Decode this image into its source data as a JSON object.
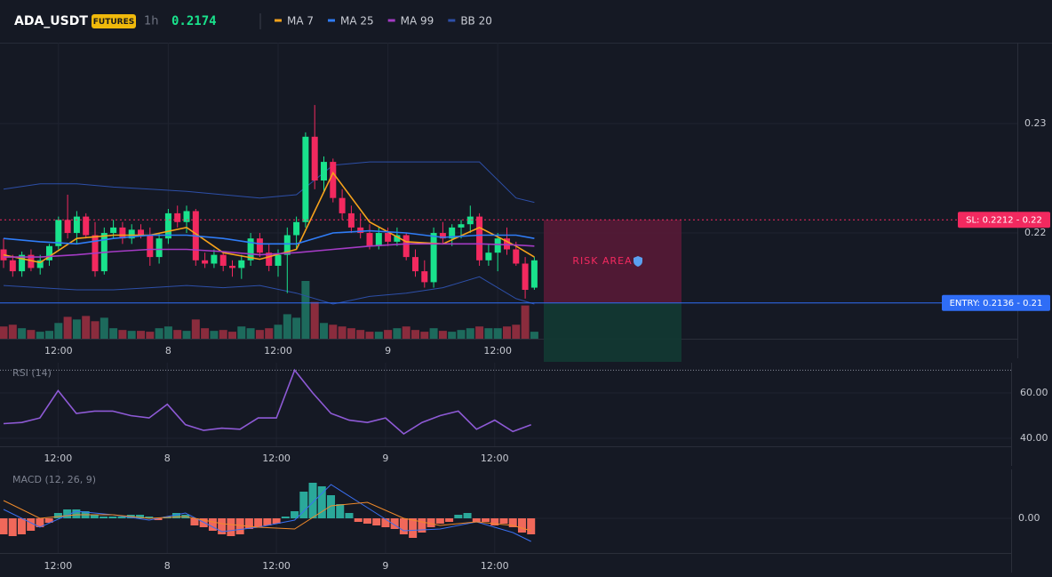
{
  "header": {
    "symbol": "ADA_USDT",
    "badge": "FUTURES",
    "interval": "1h",
    "price": "0.2174"
  },
  "chart_data": [
    {
      "type": "candlestick",
      "xlim": [
        -0.39,
        110.78
      ],
      "xticks": [
        {
          "value": 6,
          "label": "12:00"
        },
        {
          "value": 18,
          "label": "8"
        },
        {
          "value": 30,
          "label": "12:00"
        },
        {
          "value": 42,
          "label": "9"
        },
        {
          "value": 54,
          "label": "12:00"
        }
      ],
      "ylim": [
        0.21033,
        0.2374
      ],
      "yticks": [
        0.23,
        0.22
      ],
      "grid": true,
      "up_color": "#19e28c",
      "down_color": "#f2295f",
      "open": [
        0.2185,
        0.2175,
        0.2165,
        0.218,
        0.2168,
        0.2175,
        0.2188,
        0.2212,
        0.22,
        0.2215,
        0.2198,
        0.2165,
        0.22,
        0.2205,
        0.2195,
        0.2203,
        0.2198,
        0.2178,
        0.2195,
        0.2218,
        0.221,
        0.222,
        0.2175,
        0.2172,
        0.218,
        0.217,
        0.2168,
        0.2175,
        0.2195,
        0.2182,
        0.217,
        0.218,
        0.2198,
        0.221,
        0.2288,
        0.2248,
        0.2265,
        0.2232,
        0.2218,
        0.2205,
        0.22,
        0.2188,
        0.22,
        0.2192,
        0.2198,
        0.2178,
        0.2165,
        0.2155,
        0.22,
        0.2195,
        0.2205,
        0.2208,
        0.2215,
        0.2175,
        0.2182,
        0.2195,
        0.2185,
        0.2172,
        0.215
      ],
      "high": [
        0.2195,
        0.218,
        0.2183,
        0.2185,
        0.218,
        0.219,
        0.2215,
        0.2235,
        0.222,
        0.2218,
        0.221,
        0.2205,
        0.2212,
        0.221,
        0.2208,
        0.2208,
        0.2205,
        0.22,
        0.2222,
        0.2225,
        0.2225,
        0.2222,
        0.2182,
        0.2185,
        0.2182,
        0.2175,
        0.218,
        0.22,
        0.22,
        0.219,
        0.2185,
        0.2205,
        0.2215,
        0.2292,
        0.2317,
        0.227,
        0.2268,
        0.224,
        0.2225,
        0.2218,
        0.2208,
        0.2205,
        0.2205,
        0.2205,
        0.22,
        0.2185,
        0.2175,
        0.2205,
        0.221,
        0.2208,
        0.2212,
        0.2225,
        0.2218,
        0.219,
        0.22,
        0.2205,
        0.2192,
        0.2178,
        0.2178
      ],
      "low": [
        0.2168,
        0.216,
        0.216,
        0.2165,
        0.2162,
        0.217,
        0.2185,
        0.2195,
        0.219,
        0.2195,
        0.216,
        0.2162,
        0.2195,
        0.219,
        0.219,
        0.2195,
        0.217,
        0.2172,
        0.219,
        0.2205,
        0.22,
        0.217,
        0.2168,
        0.2168,
        0.2165,
        0.216,
        0.2158,
        0.217,
        0.2178,
        0.2165,
        0.216,
        0.2145,
        0.2185,
        0.2205,
        0.224,
        0.2238,
        0.2228,
        0.2212,
        0.22,
        0.2195,
        0.2185,
        0.2185,
        0.2188,
        0.2188,
        0.2175,
        0.216,
        0.215,
        0.215,
        0.219,
        0.2188,
        0.2195,
        0.22,
        0.217,
        0.217,
        0.2165,
        0.218,
        0.217,
        0.214,
        0.2148
      ],
      "close": [
        0.2175,
        0.2165,
        0.218,
        0.2168,
        0.2175,
        0.2188,
        0.2212,
        0.22,
        0.2215,
        0.2198,
        0.2165,
        0.22,
        0.2205,
        0.2195,
        0.2203,
        0.2198,
        0.2178,
        0.2195,
        0.2218,
        0.221,
        0.222,
        0.2175,
        0.2172,
        0.218,
        0.217,
        0.2168,
        0.2175,
        0.2195,
        0.2182,
        0.217,
        0.218,
        0.2198,
        0.221,
        0.2288,
        0.2248,
        0.2265,
        0.2232,
        0.2218,
        0.2205,
        0.22,
        0.2188,
        0.22,
        0.2192,
        0.2198,
        0.2178,
        0.2165,
        0.2155,
        0.22,
        0.2195,
        0.2205,
        0.2208,
        0.2215,
        0.2175,
        0.2182,
        0.2195,
        0.2185,
        0.2172,
        0.2148,
        0.2175
      ],
      "volume": [
        14,
        16,
        12,
        10,
        8,
        9,
        18,
        25,
        22,
        26,
        20,
        24,
        12,
        10,
        9,
        9,
        8,
        12,
        14,
        10,
        9,
        22,
        12,
        9,
        10,
        8,
        14,
        12,
        10,
        12,
        16,
        28,
        24,
        66,
        42,
        18,
        16,
        14,
        12,
        10,
        8,
        8,
        10,
        12,
        14,
        10,
        8,
        12,
        9,
        8,
        10,
        12,
        14,
        12,
        12,
        14,
        16,
        38,
        8
      ],
      "volume_up_color": "#1d6a5c",
      "volume_down_color": "#8a2c3d",
      "series": [
        {
          "name": "MA 7",
          "color": "#f7a21b",
          "x": [
            0,
            4,
            8,
            12,
            16,
            20,
            24,
            28,
            32,
            36,
            40,
            44,
            48,
            52,
            56,
            58
          ],
          "values": [
            0.218,
            0.2173,
            0.2195,
            0.2198,
            0.2198,
            0.2205,
            0.2182,
            0.2176,
            0.2185,
            0.2255,
            0.221,
            0.2192,
            0.219,
            0.2205,
            0.2188,
            0.2178
          ]
        },
        {
          "name": "MA 25",
          "color": "#2f7cf6",
          "x": [
            0,
            4,
            8,
            12,
            16,
            20,
            24,
            28,
            32,
            36,
            40,
            44,
            48,
            52,
            56,
            58
          ],
          "values": [
            0.2195,
            0.2192,
            0.219,
            0.2195,
            0.2198,
            0.2198,
            0.2195,
            0.219,
            0.219,
            0.22,
            0.2202,
            0.22,
            0.2196,
            0.2198,
            0.2198,
            0.2195
          ]
        },
        {
          "name": "MA 99",
          "color": "#a43bc4",
          "x": [
            0,
            4,
            8,
            12,
            16,
            20,
            24,
            28,
            32,
            36,
            40,
            44,
            48,
            52,
            56,
            58
          ],
          "values": [
            0.2178,
            0.2178,
            0.218,
            0.2183,
            0.2185,
            0.2185,
            0.2183,
            0.218,
            0.2182,
            0.2185,
            0.2188,
            0.219,
            0.219,
            0.219,
            0.2189,
            0.2188
          ]
        }
      ],
      "bands": {
        "name": "BB 20",
        "color": "#2d4fa8",
        "x": [
          0,
          4,
          8,
          12,
          16,
          20,
          24,
          28,
          32,
          36,
          40,
          44,
          48,
          52,
          56,
          58
        ],
        "upper": [
          0.224,
          0.2245,
          0.2245,
          0.2242,
          0.224,
          0.2238,
          0.2235,
          0.2232,
          0.2235,
          0.2262,
          0.2265,
          0.2265,
          0.2265,
          0.2265,
          0.2232,
          0.2228
        ],
        "lower": [
          0.2152,
          0.215,
          0.2148,
          0.2148,
          0.215,
          0.2152,
          0.215,
          0.2152,
          0.2145,
          0.2135,
          0.2142,
          0.2145,
          0.215,
          0.216,
          0.214,
          0.2135
        ]
      },
      "stop_loss": {
        "value": 0.2212,
        "label": "SL: 0.2212 - 0.22",
        "color": "#f2295f"
      },
      "entry": {
        "value": 0.2136,
        "label": "ENTRY: 0.2136 - 0.21",
        "color": "#2f6df6"
      },
      "risk_label": "RISK AREA"
    },
    {
      "type": "line",
      "title": "RSI (14)",
      "xlim": [
        -0.39,
        110.78
      ],
      "xticks": [
        {
          "value": 6,
          "label": "12:00"
        },
        {
          "value": 18,
          "label": "8"
        },
        {
          "value": 30,
          "label": "12:00"
        },
        {
          "value": 42,
          "label": "9"
        },
        {
          "value": 54,
          "label": "12:00"
        }
      ],
      "ylim": [
        36.5,
        73.3
      ],
      "yticks": [
        {
          "value": 60,
          "label": "60.00"
        },
        {
          "value": 40,
          "label": "40.00"
        }
      ],
      "overbought": 70,
      "series": [
        {
          "color": "#8e5ad6",
          "x": [
            0,
            2,
            4,
            6,
            8,
            10,
            12,
            14,
            16,
            18,
            20,
            22,
            24,
            26,
            28,
            30,
            32,
            34,
            36,
            38,
            40,
            42,
            44,
            46,
            48,
            50,
            52,
            54,
            56,
            58
          ],
          "values": [
            46.5,
            47,
            49,
            61,
            51,
            52,
            52,
            50,
            49,
            55,
            46,
            43.5,
            44.5,
            44,
            49,
            49,
            70,
            60,
            51,
            48,
            47,
            49,
            42,
            47,
            50,
            52,
            44,
            48,
            43,
            46
          ]
        }
      ]
    },
    {
      "type": "bar",
      "title": "MACD (12, 26, 9)",
      "xlim": [
        -0.39,
        110.78
      ],
      "xticks": [
        {
          "value": 6,
          "label": "12:00"
        },
        {
          "value": 18,
          "label": "8"
        },
        {
          "value": 30,
          "label": "12:00"
        },
        {
          "value": 42,
          "label": "9"
        },
        {
          "value": 54,
          "label": "12:00"
        }
      ],
      "ylim": [
        -0.00078,
        0.0011
      ],
      "yticks": [
        {
          "value": 0,
          "label": "0.00"
        }
      ],
      "up_color": "#2aa89a",
      "down_color": "#f0685a",
      "values": [
        -0.00036,
        -0.0004,
        -0.00036,
        -0.00028,
        -0.0002,
        -0.0001,
        0.00012,
        0.0002,
        0.0002,
        0.00016,
        8e-05,
        4e-05,
        4e-05,
        4e-05,
        8e-05,
        8e-05,
        4e-05,
        -4e-05,
        4e-05,
        0.00012,
        8e-05,
        -0.00016,
        -0.0002,
        -0.00028,
        -0.00036,
        -0.0004,
        -0.00036,
        -0.00024,
        -0.0002,
        -0.00016,
        -0.00012,
        4e-05,
        0.00016,
        0.0006,
        0.0008,
        0.00072,
        0.00052,
        0.00032,
        0.00012,
        -8e-05,
        -0.00012,
        -0.00016,
        -0.0002,
        -0.00024,
        -0.00036,
        -0.00044,
        -0.00032,
        -0.0002,
        -0.00012,
        -8e-05,
        8e-05,
        0.00012,
        -8e-05,
        -8e-05,
        -0.00016,
        -0.00012,
        -0.0002,
        -0.00032,
        -0.00036
      ],
      "series": [
        {
          "color": "#3a6ff0",
          "x": [
            0,
            4,
            8,
            12,
            16,
            20,
            24,
            28,
            32,
            36,
            40,
            44,
            48,
            52,
            56,
            58
          ],
          "values": [
            0.0002,
            -0.0002,
            0.00016,
            8e-05,
            -4e-05,
            0.00012,
            -0.0003,
            -0.0002,
            -4e-05,
            0.00076,
            0.00024,
            -0.00028,
            -0.00024,
            -8e-05,
            -0.00032,
            -0.00052
          ]
        },
        {
          "color": "#f08a2a",
          "x": [
            0,
            4,
            8,
            12,
            16,
            20,
            24,
            28,
            32,
            36,
            40,
            44,
            48,
            52,
            56,
            58
          ],
          "values": [
            0.0004,
            0,
            8e-05,
            8e-05,
            0,
            4e-05,
            -0.00012,
            -0.0002,
            -0.00024,
            0.00028,
            0.00036,
            0,
            -0.00016,
            -8e-05,
            -0.00016,
            -0.00028
          ]
        }
      ]
    }
  ]
}
